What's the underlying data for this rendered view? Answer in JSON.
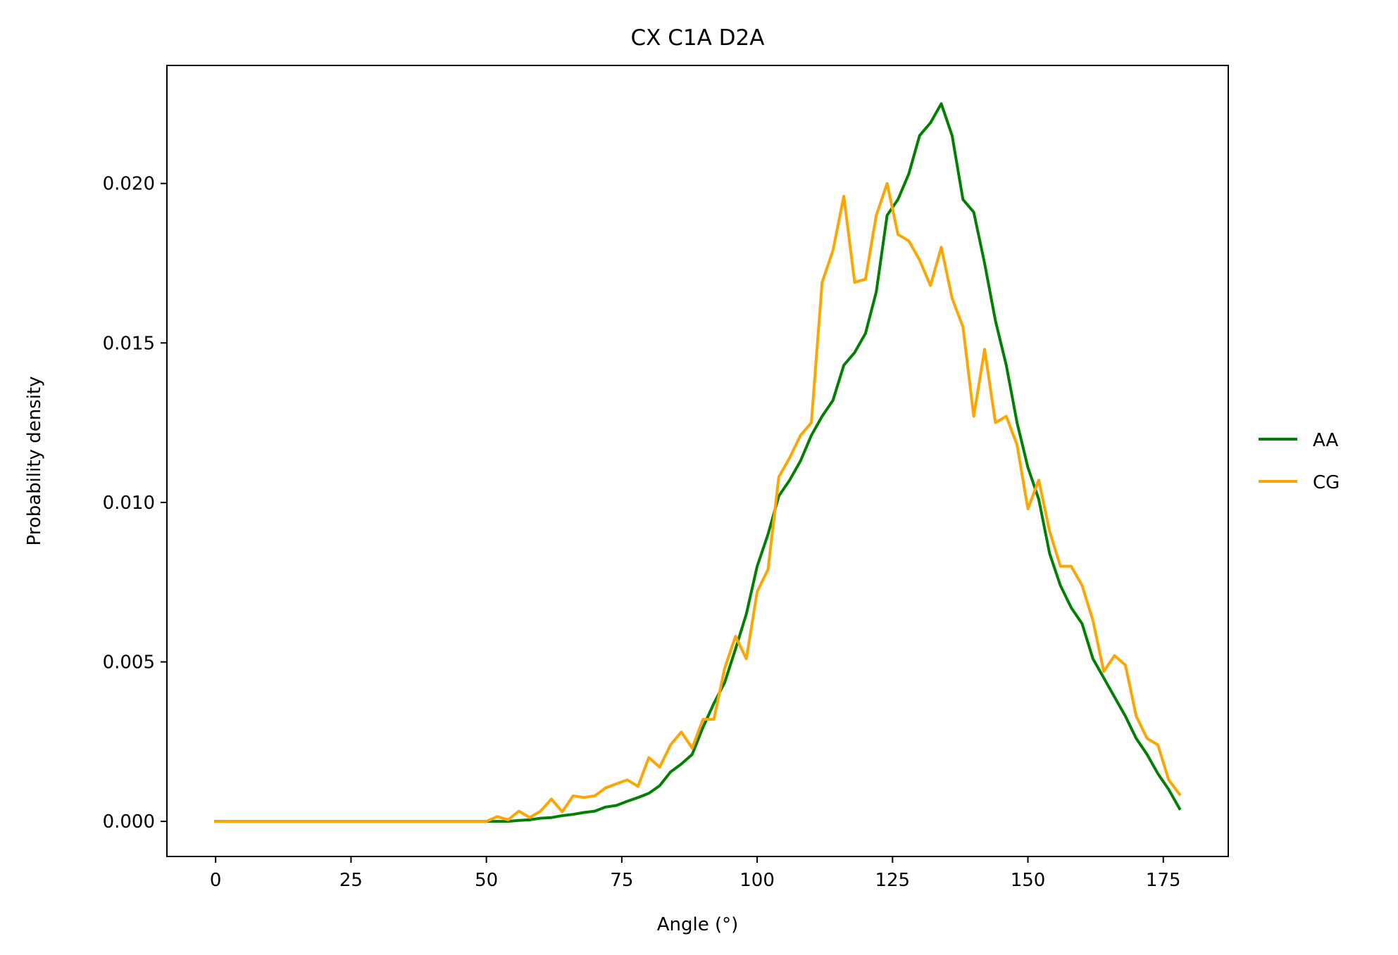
{
  "chart_data": {
    "type": "line",
    "title": "CX C1A D2A",
    "xlabel": "Angle (°)",
    "ylabel": "Probability density",
    "xlim": [
      -9,
      187
    ],
    "ylim": [
      -0.0011,
      0.0237
    ],
    "xticks": [
      0,
      25,
      50,
      75,
      100,
      125,
      150,
      175
    ],
    "xtick_labels": [
      "0",
      "25",
      "50",
      "75",
      "100",
      "125",
      "150",
      "175"
    ],
    "yticks": [
      0,
      0.005,
      0.01,
      0.015,
      0.02
    ],
    "ytick_labels": [
      "0.000",
      "0.005",
      "0.010",
      "0.015",
      "0.020"
    ],
    "grid": false,
    "legend_position": "right, outside plot",
    "x": [
      0,
      2,
      4,
      6,
      8,
      10,
      12,
      14,
      16,
      18,
      20,
      22,
      24,
      26,
      28,
      30,
      32,
      34,
      36,
      38,
      40,
      42,
      44,
      46,
      48,
      50,
      52,
      54,
      56,
      58,
      60,
      62,
      64,
      66,
      68,
      70,
      72,
      74,
      76,
      78,
      80,
      82,
      84,
      86,
      88,
      90,
      92,
      94,
      96,
      98,
      100,
      102,
      104,
      106,
      108,
      110,
      112,
      114,
      116,
      118,
      120,
      122,
      124,
      126,
      128,
      130,
      132,
      134,
      136,
      138,
      140,
      142,
      144,
      146,
      148,
      150,
      152,
      154,
      156,
      158,
      160,
      162,
      164,
      166,
      168,
      170,
      172,
      174,
      176,
      178
    ],
    "series": [
      {
        "name": "AA",
        "color": "#008000",
        "values": [
          0,
          0,
          0,
          0,
          0,
          0,
          0,
          0,
          0,
          0,
          0,
          0,
          0,
          0,
          0,
          0,
          0,
          0,
          0,
          0,
          0,
          0,
          0,
          0,
          0,
          0,
          0,
          0,
          3e-05,
          5e-05,
          0.0001,
          0.00012,
          0.00018,
          0.00022,
          0.00028,
          0.00032,
          0.00045,
          0.0005,
          0.00063,
          0.00075,
          0.00088,
          0.00112,
          0.00155,
          0.0018,
          0.0021,
          0.00295,
          0.0037,
          0.00435,
          0.0054,
          0.0065,
          0.008,
          0.009,
          0.0102,
          0.0107,
          0.0113,
          0.0121,
          0.0127,
          0.0132,
          0.0143,
          0.0147,
          0.0153,
          0.0166,
          0.019,
          0.0195,
          0.0203,
          0.0215,
          0.0219,
          0.0225,
          0.0215,
          0.0195,
          0.0191,
          0.0175,
          0.0157,
          0.0143,
          0.0125,
          0.0111,
          0.0101,
          0.0084,
          0.0074,
          0.0067,
          0.0062,
          0.0051,
          0.0045,
          0.0039,
          0.0033,
          0.0026,
          0.0021,
          0.0015,
          0.001,
          0.0004
        ]
      },
      {
        "name": "CG",
        "color": "#ffa500",
        "values": [
          0,
          0,
          0,
          0,
          0,
          0,
          0,
          0,
          0,
          0,
          0,
          0,
          0,
          0,
          0,
          0,
          0,
          0,
          0,
          0,
          0,
          0,
          0,
          0,
          0,
          0,
          0.00015,
          5e-05,
          0.00032,
          0.00012,
          0.00032,
          0.0007,
          0.0003,
          0.0008,
          0.00075,
          0.0008,
          0.00105,
          0.00118,
          0.0013,
          0.0011,
          0.002,
          0.0017,
          0.0024,
          0.0028,
          0.0023,
          0.0032,
          0.0032,
          0.0048,
          0.0058,
          0.0051,
          0.0072,
          0.0079,
          0.0108,
          0.0114,
          0.0121,
          0.0125,
          0.0169,
          0.0179,
          0.0196,
          0.0169,
          0.017,
          0.019,
          0.02,
          0.0184,
          0.0182,
          0.0176,
          0.0168,
          0.018,
          0.0164,
          0.0155,
          0.0127,
          0.0148,
          0.0125,
          0.0127,
          0.0118,
          0.0098,
          0.0107,
          0.0091,
          0.008,
          0.008,
          0.0074,
          0.0063,
          0.0047,
          0.0052,
          0.0049,
          0.0033,
          0.0026,
          0.0024,
          0.0013,
          0.00085
        ]
      }
    ]
  }
}
